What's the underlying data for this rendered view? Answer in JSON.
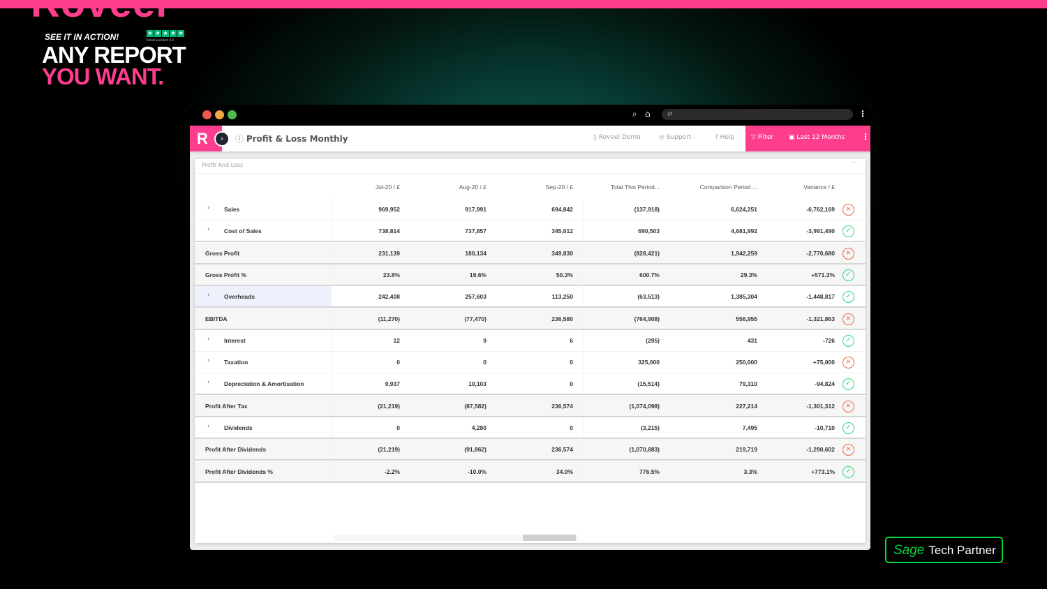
{
  "promo": {
    "brand": "Roveel",
    "tagline": "SEE IT IN ACTION!",
    "headline1": "ANY REPORT",
    "headline2": "YOU WANT.",
    "rating": "Rated Excellent 4.4",
    "accent": "#ff3d8f"
  },
  "browser": {
    "url_icon": "⇄"
  },
  "app": {
    "logo": "R",
    "title": "Profit & Loss Monthly",
    "company": "Roveel Demo",
    "support": "Support -",
    "help": "Help",
    "filter": "Filter",
    "period": "Last 12 Months"
  },
  "card": {
    "title": "Profit And Loss",
    "more": "···"
  },
  "table": {
    "columns": [
      "Jul-20 / £",
      "Aug-20 / £",
      "Sep-20 / £",
      "Total This Period...",
      "Comparison Period ...",
      "Variance / £"
    ],
    "rows": [
      {
        "label": "Sales",
        "child": true,
        "values": [
          "969,952",
          "917,991",
          "694,842",
          "(137,918)",
          "6,624,251",
          "-6,762,169"
        ],
        "status": "bad"
      },
      {
        "label": "Cost of Sales",
        "child": true,
        "values": [
          "738,814",
          "737,857",
          "345,012",
          "690,503",
          "4,681,992",
          "-3,991,490"
        ],
        "status": "good"
      },
      {
        "label": "Gross Profit",
        "child": false,
        "values": [
          "231,139",
          "180,134",
          "349,830",
          "(828,421)",
          "1,942,259",
          "-2,770,680"
        ],
        "status": "bad"
      },
      {
        "label": "Gross Profit %",
        "child": false,
        "values": [
          "23.8%",
          "19.6%",
          "50.3%",
          "600.7%",
          "29.3%",
          "+571.3%"
        ],
        "status": "good"
      },
      {
        "label": "Overheads",
        "child": true,
        "highlight": true,
        "values": [
          "242,408",
          "257,603",
          "113,250",
          "(63,513)",
          "1,385,304",
          "-1,448,817"
        ],
        "status": "good"
      },
      {
        "label": "EBITDA",
        "child": false,
        "values": [
          "(11,270)",
          "(77,470)",
          "236,580",
          "(764,908)",
          "556,955",
          "-1,321,863"
        ],
        "status": "bad"
      },
      {
        "label": "Interest",
        "child": true,
        "values": [
          "12",
          "9",
          "6",
          "(295)",
          "431",
          "-726"
        ],
        "status": "good"
      },
      {
        "label": "Taxation",
        "child": true,
        "values": [
          "0",
          "0",
          "0",
          "325,000",
          "250,000",
          "+75,000"
        ],
        "status": "bad"
      },
      {
        "label": "Depreciation & Amortisation",
        "child": true,
        "values": [
          "9,937",
          "10,103",
          "0",
          "(15,514)",
          "79,310",
          "-94,824"
        ],
        "status": "good"
      },
      {
        "label": "Profit After Tax",
        "child": false,
        "values": [
          "(21,219)",
          "(87,582)",
          "236,574",
          "(1,074,098)",
          "227,214",
          "-1,301,312"
        ],
        "status": "bad"
      },
      {
        "label": "Dividends",
        "child": true,
        "values": [
          "0",
          "4,280",
          "0",
          "(3,215)",
          "7,495",
          "-10,710"
        ],
        "status": "good"
      },
      {
        "label": "Profit After Dividends",
        "child": false,
        "values": [
          "(21,219)",
          "(91,862)",
          "236,574",
          "(1,070,883)",
          "219,719",
          "-1,290,602"
        ],
        "status": "bad"
      },
      {
        "label": "Profit After Dividends %",
        "child": false,
        "values": [
          "-2.2%",
          "-10.0%",
          "34.0%",
          "776.5%",
          "3.3%",
          "+773.1%"
        ],
        "status": "good"
      }
    ]
  },
  "colors": {
    "good": "#2ed87a",
    "bad": "#f0643c"
  },
  "partner": {
    "brand": "Sage",
    "label": "Tech Partner"
  }
}
